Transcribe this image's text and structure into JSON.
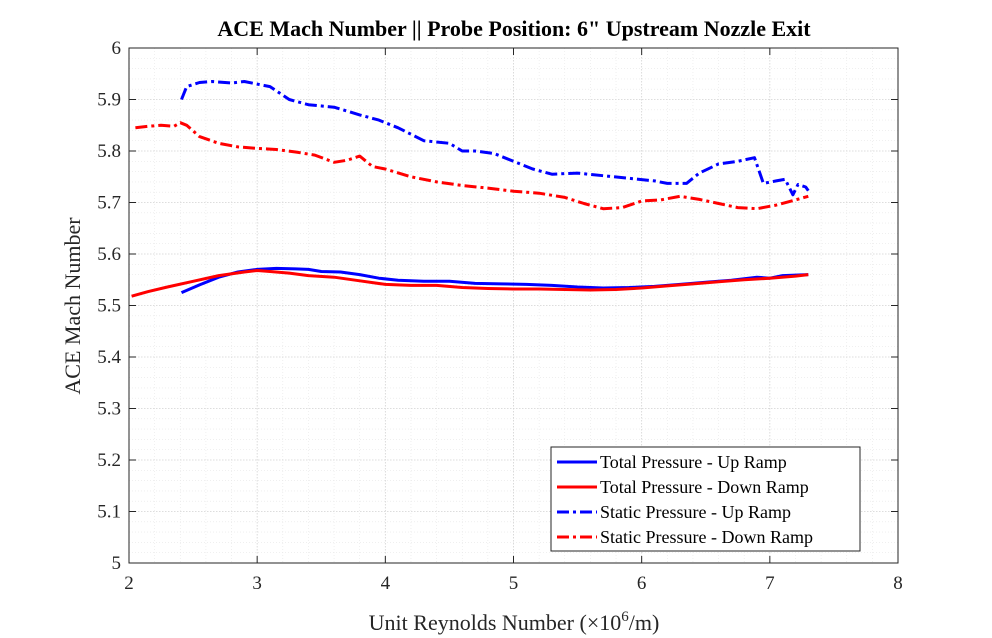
{
  "chart_data": {
    "type": "line",
    "title": "ACE Mach Number || Probe Position: 6\" Upstream Nozzle Exit",
    "xlabel_prefix": "Unit Reynolds Number (",
    "xlabel_times": "×10",
    "xlabel_exp": "6",
    "xlabel_suffix": "/m)",
    "ylabel": "ACE Mach Number",
    "xlim": [
      2,
      8
    ],
    "ylim": [
      5,
      6
    ],
    "xticks": [
      2,
      3,
      4,
      5,
      6,
      7,
      8
    ],
    "yticks": [
      5,
      5.1,
      5.2,
      5.3,
      5.4,
      5.5,
      5.6,
      5.7,
      5.8,
      5.9,
      6
    ],
    "xtick_labels": [
      "2",
      "3",
      "4",
      "5",
      "6",
      "7",
      "8"
    ],
    "ytick_labels": [
      "5",
      "5.1",
      "5.2",
      "5.3",
      "5.4",
      "5.5",
      "5.6",
      "5.7",
      "5.8",
      "5.9",
      "6"
    ],
    "grid": true,
    "minor_grid": true,
    "legend_position": "bottom-right",
    "series": [
      {
        "name": "Total Pressure - Up Ramp",
        "color": "#0000ff",
        "style": "solid",
        "x": [
          2.41,
          2.55,
          2.7,
          2.85,
          3.0,
          3.15,
          3.3,
          3.4,
          3.5,
          3.65,
          3.8,
          3.95,
          4.1,
          4.3,
          4.5,
          4.7,
          4.9,
          5.1,
          5.3,
          5.5,
          5.7,
          5.9,
          6.1,
          6.3,
          6.5,
          6.7,
          6.9,
          7.0,
          7.1,
          7.3
        ],
        "y": [
          5.525,
          5.54,
          5.555,
          5.565,
          5.57,
          5.572,
          5.571,
          5.57,
          5.566,
          5.565,
          5.56,
          5.553,
          5.549,
          5.547,
          5.547,
          5.543,
          5.542,
          5.541,
          5.539,
          5.536,
          5.534,
          5.535,
          5.537,
          5.541,
          5.545,
          5.549,
          5.555,
          5.553,
          5.558,
          5.56
        ]
      },
      {
        "name": "Total Pressure - Down Ramp",
        "color": "#ff0000",
        "style": "solid",
        "x": [
          2.02,
          2.15,
          2.3,
          2.5,
          2.7,
          2.9,
          3.0,
          3.1,
          3.25,
          3.4,
          3.6,
          3.8,
          4.0,
          4.2,
          4.4,
          4.6,
          4.8,
          5.0,
          5.2,
          5.4,
          5.6,
          5.8,
          6.0,
          6.2,
          6.4,
          6.6,
          6.8,
          7.0,
          7.2,
          7.3
        ],
        "y": [
          5.518,
          5.527,
          5.536,
          5.547,
          5.558,
          5.565,
          5.568,
          5.566,
          5.563,
          5.558,
          5.555,
          5.548,
          5.541,
          5.539,
          5.539,
          5.535,
          5.533,
          5.532,
          5.532,
          5.531,
          5.53,
          5.531,
          5.534,
          5.538,
          5.542,
          5.546,
          5.55,
          5.553,
          5.557,
          5.56
        ]
      },
      {
        "name": "Static Pressure - Up Ramp",
        "color": "#0000ff",
        "style": "dashdot",
        "x": [
          2.41,
          2.45,
          2.55,
          2.65,
          2.8,
          2.9,
          3.0,
          3.1,
          3.25,
          3.4,
          3.6,
          3.8,
          3.95,
          4.1,
          4.3,
          4.5,
          4.6,
          4.7,
          4.85,
          5.0,
          5.15,
          5.3,
          5.5,
          5.7,
          5.9,
          6.1,
          6.2,
          6.35,
          6.45,
          6.6,
          6.75,
          6.88,
          6.95,
          7.05,
          7.12,
          7.18,
          7.22,
          7.28,
          7.3
        ],
        "y": [
          5.9,
          5.925,
          5.933,
          5.935,
          5.932,
          5.935,
          5.93,
          5.925,
          5.9,
          5.89,
          5.885,
          5.87,
          5.86,
          5.845,
          5.82,
          5.815,
          5.8,
          5.8,
          5.795,
          5.78,
          5.765,
          5.755,
          5.757,
          5.752,
          5.747,
          5.742,
          5.737,
          5.737,
          5.757,
          5.775,
          5.78,
          5.787,
          5.737,
          5.742,
          5.745,
          5.715,
          5.735,
          5.73,
          5.723
        ]
      },
      {
        "name": "Static Pressure - Down Ramp",
        "color": "#ff0000",
        "style": "dashdot",
        "x": [
          2.05,
          2.15,
          2.25,
          2.35,
          2.4,
          2.45,
          2.55,
          2.7,
          2.85,
          3.0,
          3.15,
          3.3,
          3.45,
          3.6,
          3.7,
          3.8,
          3.9,
          4.0,
          4.2,
          4.4,
          4.6,
          4.8,
          5.0,
          5.2,
          5.4,
          5.55,
          5.7,
          5.85,
          6.0,
          6.15,
          6.3,
          6.45,
          6.6,
          6.75,
          6.9,
          7.05,
          7.2,
          7.3
        ],
        "y": [
          5.845,
          5.848,
          5.85,
          5.848,
          5.855,
          5.85,
          5.828,
          5.815,
          5.808,
          5.805,
          5.803,
          5.798,
          5.792,
          5.778,
          5.782,
          5.79,
          5.77,
          5.765,
          5.75,
          5.74,
          5.733,
          5.728,
          5.722,
          5.718,
          5.71,
          5.698,
          5.688,
          5.69,
          5.703,
          5.705,
          5.712,
          5.706,
          5.698,
          5.69,
          5.688,
          5.695,
          5.705,
          5.712
        ]
      }
    ]
  }
}
